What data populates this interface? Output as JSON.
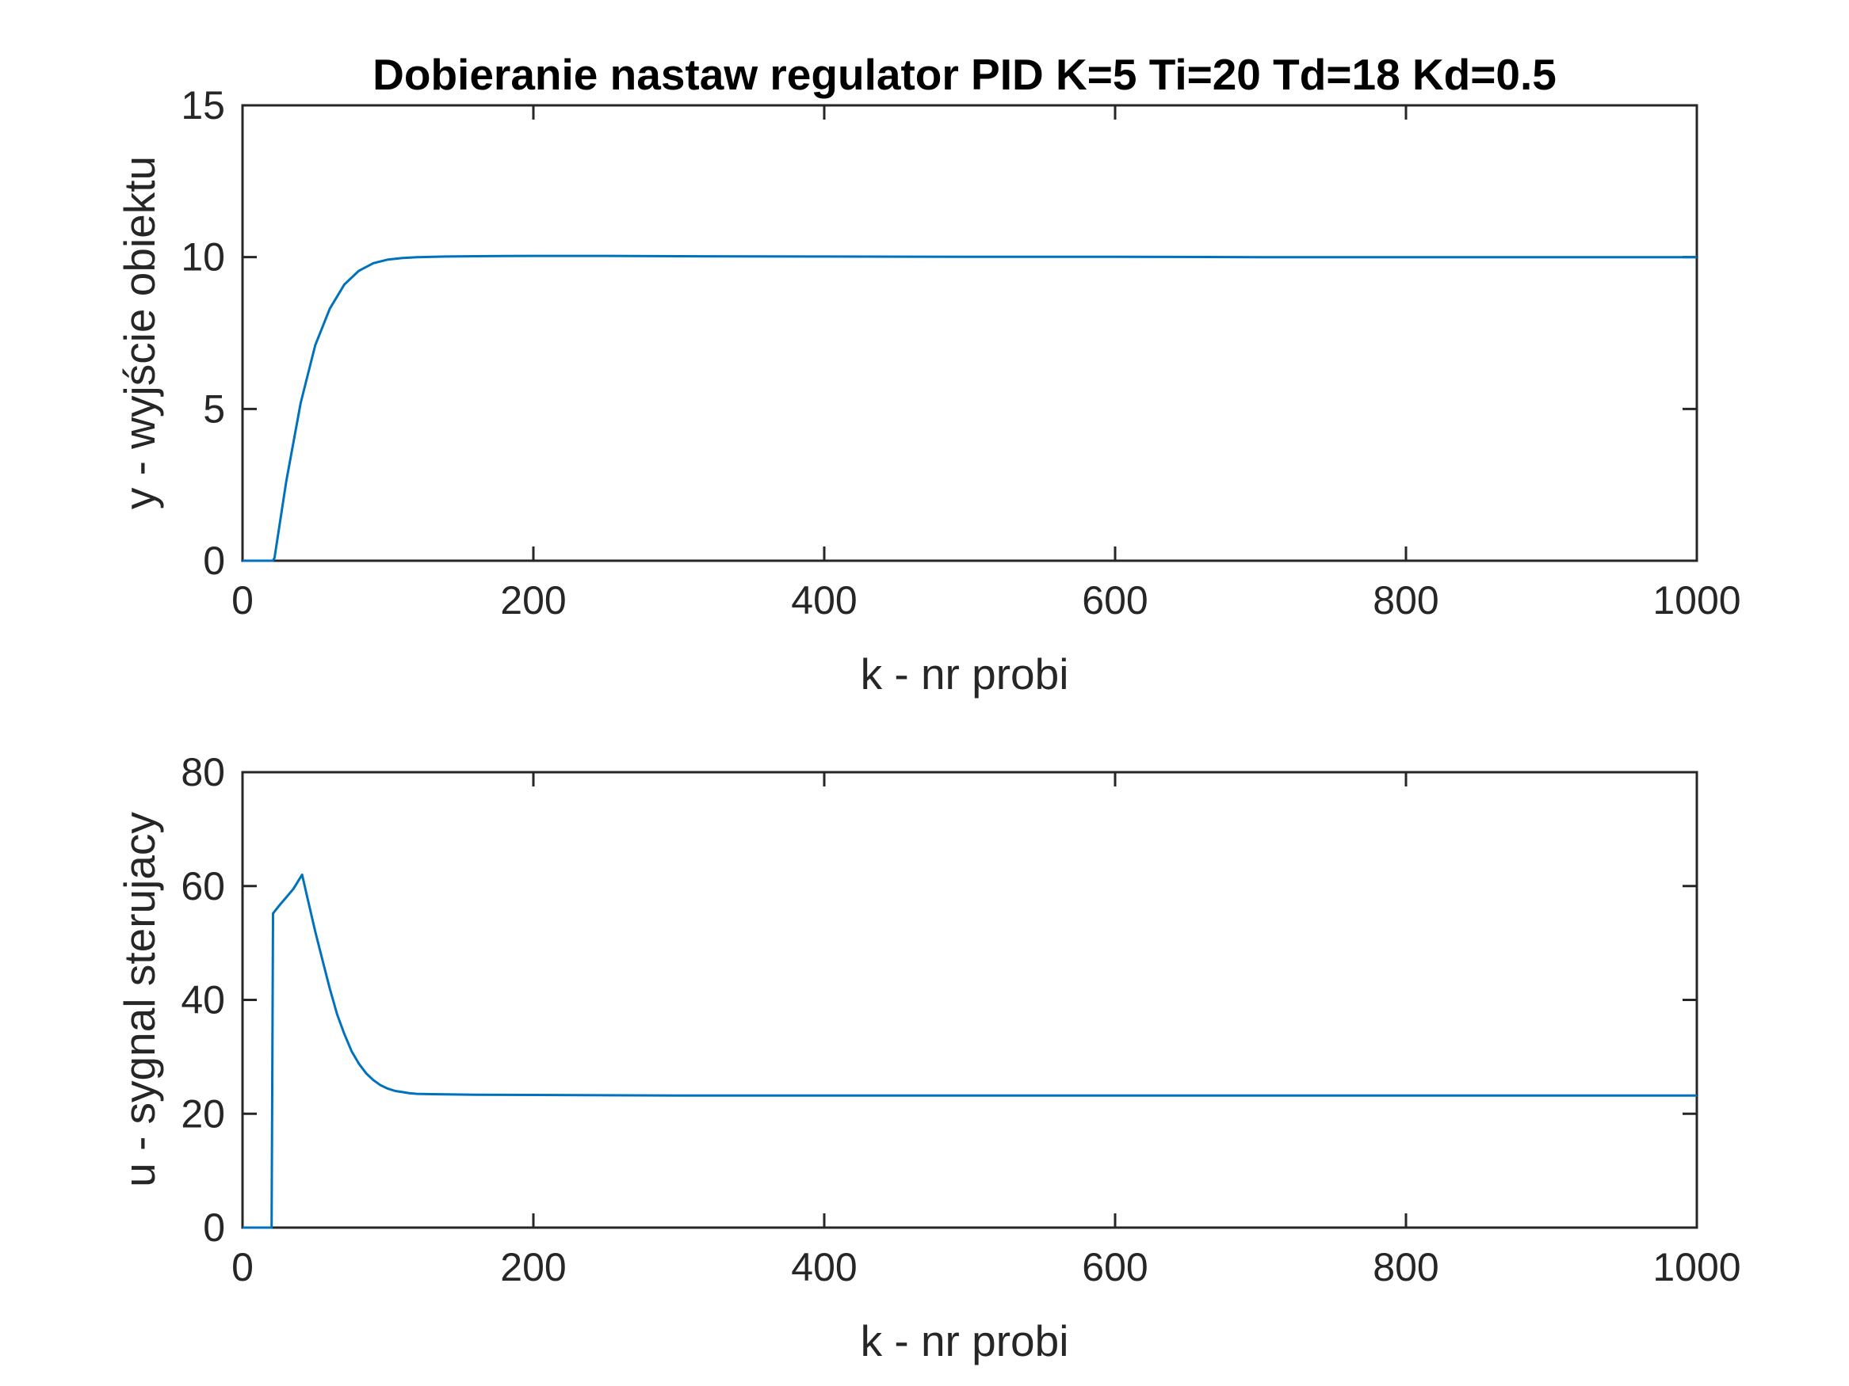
{
  "colors": {
    "series": "#0072BD",
    "axes": "#262626",
    "background": "#FFFFFF"
  },
  "chart_data": [
    {
      "type": "line",
      "title": "Dobieranie nastaw regulator PID K=5 Ti=20 Td=18 Kd=0.5",
      "xlabel": "k - nr probi",
      "ylabel": "y - wyjście obiektu",
      "xlim": [
        0,
        1000
      ],
      "ylim": [
        0,
        15
      ],
      "xticks": [
        0,
        200,
        400,
        600,
        800,
        1000
      ],
      "yticks": [
        0,
        5,
        10,
        15
      ],
      "xtick_labels": [
        "0",
        "200",
        "400",
        "600",
        "800",
        "1000"
      ],
      "ytick_labels": [
        "0",
        "5",
        "10",
        "15"
      ],
      "grid": false,
      "series": [
        {
          "x": [
            0,
            21,
            22,
            30,
            40,
            50,
            60,
            70,
            80,
            90,
            100,
            110,
            120,
            140,
            160,
            200,
            250,
            300,
            400,
            500,
            600,
            700,
            800,
            900,
            1000
          ],
          "y": [
            0,
            0,
            0.1,
            2.6,
            5.2,
            7.1,
            8.3,
            9.1,
            9.55,
            9.8,
            9.92,
            9.97,
            10.0,
            10.02,
            10.03,
            10.04,
            10.04,
            10.03,
            10.02,
            10.01,
            10.01,
            10.0,
            10.0,
            10.0,
            10.0
          ]
        }
      ]
    },
    {
      "type": "line",
      "title": "",
      "xlabel": "k - nr probi",
      "ylabel": "u - sygnal sterujacy",
      "xlim": [
        0,
        1000
      ],
      "ylim": [
        0,
        80
      ],
      "xticks": [
        0,
        200,
        400,
        600,
        800,
        1000
      ],
      "yticks": [
        0,
        20,
        40,
        60,
        80
      ],
      "xtick_labels": [
        "0",
        "200",
        "400",
        "600",
        "800",
        "1000"
      ],
      "ytick_labels": [
        "0",
        "20",
        "40",
        "60",
        "80"
      ],
      "grid": false,
      "series": [
        {
          "x": [
            0,
            20,
            21,
            25,
            30,
            35,
            41,
            45,
            50,
            55,
            60,
            65,
            70,
            75,
            80,
            85,
            90,
            95,
            100,
            105,
            110,
            115,
            120,
            130,
            140,
            160,
            200,
            300,
            400,
            500,
            600,
            700,
            800,
            900,
            1000
          ],
          "y": [
            0,
            0,
            55.2,
            56.5,
            58.0,
            59.5,
            62.0,
            57.5,
            52.0,
            47.0,
            42.0,
            37.5,
            34.0,
            31.0,
            28.8,
            27.1,
            25.9,
            25.0,
            24.4,
            24.0,
            23.8,
            23.6,
            23.5,
            23.45,
            23.4,
            23.35,
            23.3,
            23.2,
            23.2,
            23.2,
            23.2,
            23.2,
            23.2,
            23.2,
            23.2
          ]
        }
      ]
    }
  ]
}
